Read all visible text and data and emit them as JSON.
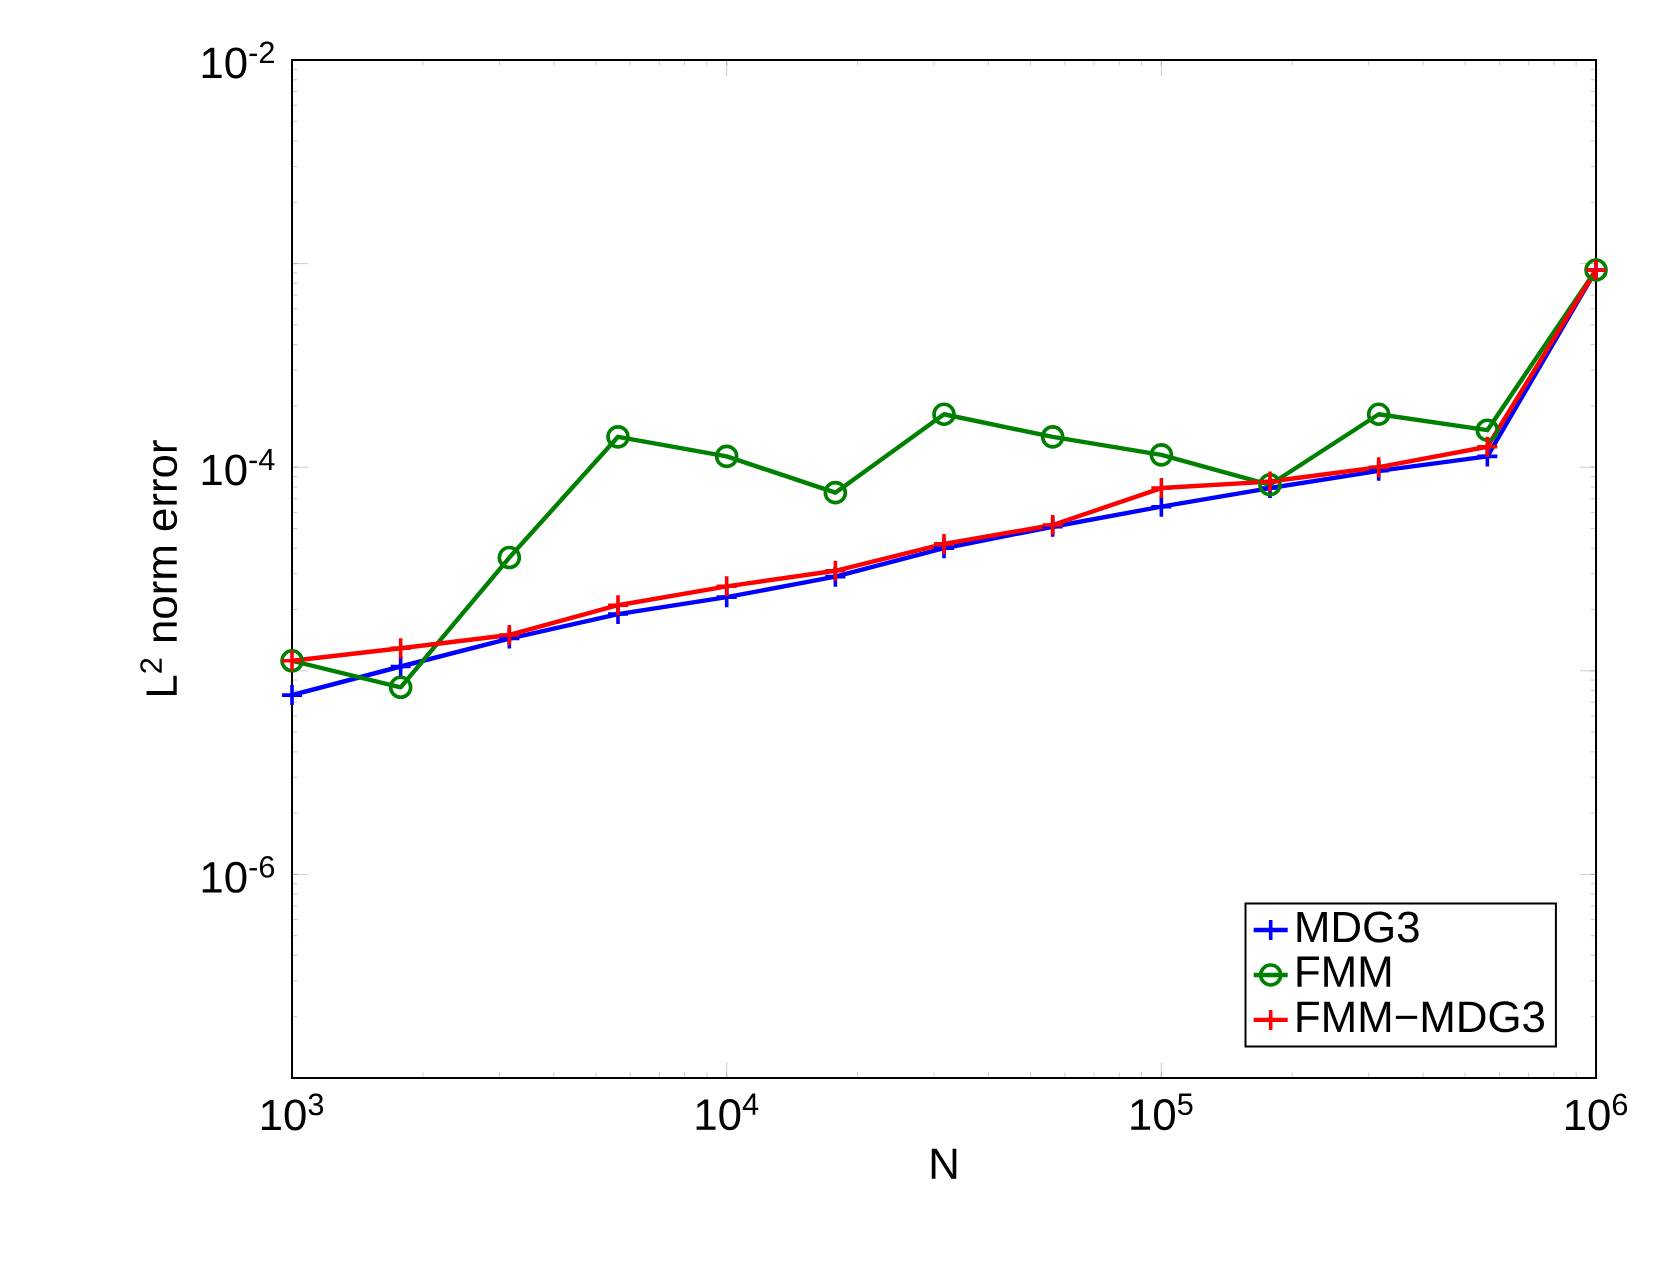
{
  "chart_data": {
    "type": "line",
    "xlabel": "N",
    "ylabel": "L$^{2}$ norm error",
    "log": "xy",
    "grid": false,
    "legend": "bottom right",
    "line_style": "solid",
    "x": [
      1000,
      1778,
      3162,
      5623,
      10000,
      17783,
      31623,
      56234,
      100000,
      177828,
      316228,
      562341,
      1000000
    ],
    "xlim": [
      1000,
      1000000
    ],
    "ylim": [
      1e-07,
      0.01
    ],
    "xticks": [
      {
        "value": 1000,
        "label": "10$^{3}$"
      },
      {
        "value": 10000,
        "label": "10$^{4}$"
      },
      {
        "value": 100000,
        "label": "10$^{5}$"
      },
      {
        "value": 1000000,
        "label": "10$^{6}$"
      }
    ],
    "yticks": [
      {
        "value": 1e-07,
        "label": null
      },
      {
        "value": 1e-06,
        "label": "10$^{-6}$"
      },
      {
        "value": 1e-05,
        "label": null
      },
      {
        "value": 0.0001,
        "label": "10$^{-4}$"
      },
      {
        "value": 0.001,
        "label": null
      },
      {
        "value": 0.01,
        "label": "10$^{-2}$"
      }
    ],
    "series": [
      {
        "name": "MDG3",
        "color": "#0000ff",
        "marker": "cross",
        "values": [
          7.6e-06,
          1.05e-05,
          1.44e-05,
          1.9e-05,
          2.3e-05,
          2.9e-05,
          4e-05,
          5.1e-05,
          6.4e-05,
          7.9e-05,
          9.6e-05,
          0.000113,
          0.00093
        ]
      },
      {
        "name": "FMM",
        "color": "#008000",
        "marker": "circle",
        "values": [
          1.12e-05,
          8.3e-06,
          3.6e-05,
          0.000141,
          0.000113,
          7.5e-05,
          0.000182,
          0.000141,
          0.000115,
          8.2e-05,
          0.000182,
          0.000152,
          0.00093
        ]
      },
      {
        "name": "FMM−MDG3",
        "color": "#ff0000",
        "marker": "cross",
        "values": [
          1.12e-05,
          1.29e-05,
          1.5e-05,
          2.1e-05,
          2.6e-05,
          3.1e-05,
          4.2e-05,
          5.2e-05,
          7.9e-05,
          8.5e-05,
          0.0001,
          0.000126,
          0.00093
        ]
      }
    ]
  }
}
